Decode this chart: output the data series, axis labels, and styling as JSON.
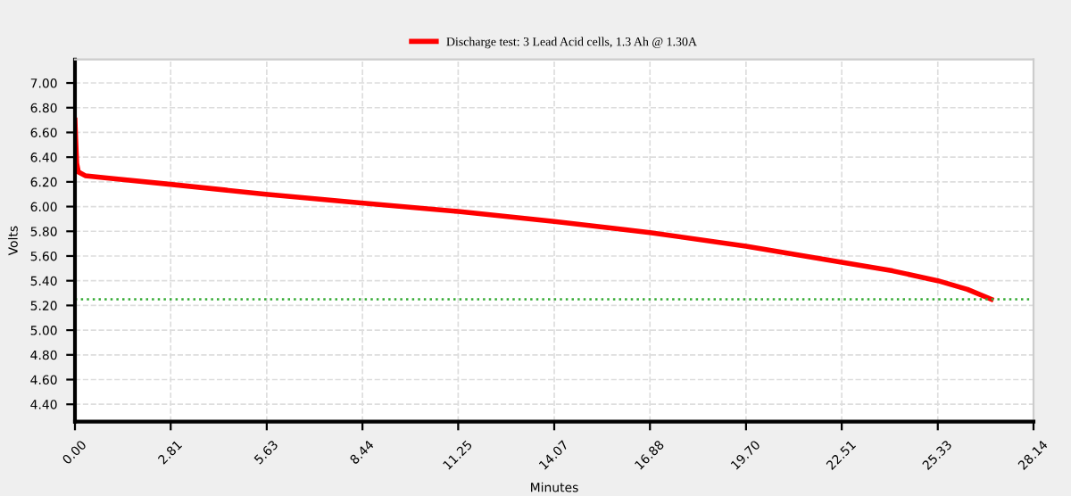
{
  "chart_data": {
    "type": "line",
    "xlabel": "Minutes",
    "ylabel": "Volts",
    "series": [
      {
        "name": "Discharge test: 3 Lead Acid cells, 1.3 Ah @ 1.30A",
        "color": "#ff0000",
        "x": [
          0,
          0.02,
          0.05,
          0.1,
          0.3,
          1,
          2.8,
          5.6,
          8.4,
          11.25,
          14.07,
          16.88,
          19.7,
          22.51,
          24,
          25.33,
          26.2,
          26.9
        ],
        "values": [
          6.7,
          6.55,
          6.35,
          6.28,
          6.25,
          6.23,
          6.18,
          6.1,
          6.03,
          5.96,
          5.88,
          5.79,
          5.68,
          5.55,
          5.48,
          5.4,
          5.33,
          5.25
        ]
      }
    ],
    "xlim": [
      0,
      28.14
    ],
    "xticks": [
      {
        "value": 0,
        "label": "0.00"
      },
      2.81,
      5.63,
      8.44,
      11.25,
      14.07,
      16.88,
      {
        "value": 19.7,
        "label": "19.70"
      },
      22.51,
      25.33,
      28.14
    ],
    "ylim": [
      4.26,
      7.19
    ],
    "yticks": [
      {
        "value": 4.4,
        "label": "4.40"
      },
      {
        "value": 4.6,
        "label": "4.60"
      },
      {
        "value": 4.8,
        "label": "4.80"
      },
      {
        "value": 5.0,
        "label": "5.00"
      },
      {
        "value": 5.2,
        "label": "5.20"
      },
      {
        "value": 5.4,
        "label": "5.40"
      },
      {
        "value": 5.6,
        "label": "5.60"
      },
      {
        "value": 5.8,
        "label": "5.80"
      },
      {
        "value": 6.0,
        "label": "6.00"
      },
      {
        "value": 6.2,
        "label": "6.20"
      },
      {
        "value": 6.4,
        "label": "6.40"
      },
      {
        "value": 6.6,
        "label": "6.60"
      },
      {
        "value": 6.8,
        "label": "6.80"
      },
      {
        "value": 7.0,
        "label": "7.00"
      }
    ],
    "ref_lines": [
      {
        "axis": "y",
        "value": 5.25,
        "color": "#33aa33",
        "line_style": "dotted"
      }
    ],
    "grid": true,
    "legend": "top",
    "marker": "none",
    "line_style": "solid"
  }
}
